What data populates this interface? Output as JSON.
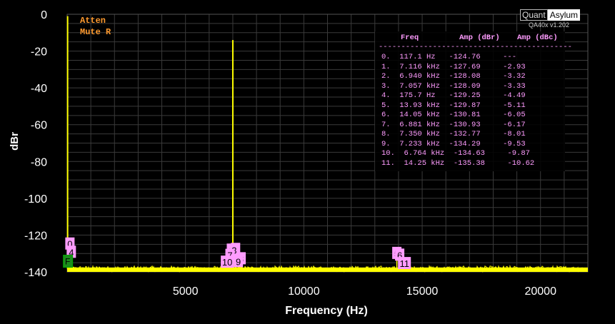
{
  "chart_data": {
    "type": "line",
    "title": "",
    "xlabel": "Frequency (Hz)",
    "ylabel": "dBr",
    "xlim": [
      0,
      22000
    ],
    "ylim": [
      -140,
      0
    ],
    "x_ticks": [
      5000,
      10000,
      15000,
      20000
    ],
    "y_ticks": [
      0,
      -20,
      -40,
      -60,
      -80,
      -100,
      -120,
      -140
    ],
    "x_tick_labels": [
      "5000",
      "10000",
      "15000",
      "20000"
    ],
    "y_tick_labels": [
      "0",
      "-20",
      "-40",
      "-60",
      "-80",
      "-100",
      "-120",
      "-140"
    ],
    "grid": true,
    "noise_floor_dbr": -138,
    "series": [
      {
        "color": "#ffff00",
        "peaks": [
          {
            "x": 20,
            "y": -1
          },
          {
            "x": 7000,
            "y": -14
          },
          {
            "x": 117.1,
            "y": -124.76
          },
          {
            "x": 175.7,
            "y": -129.25
          },
          {
            "x": 7116,
            "y": -127.69
          },
          {
            "x": 6940,
            "y": -128.08
          },
          {
            "x": 7057,
            "y": -128.09
          },
          {
            "x": 13930,
            "y": -129.87
          },
          {
            "x": 14050,
            "y": -130.81
          },
          {
            "x": 6881,
            "y": -130.93
          },
          {
            "x": 7350,
            "y": -132.77
          },
          {
            "x": 7233,
            "y": -134.29
          },
          {
            "x": 6764,
            "y": -134.63
          },
          {
            "x": 14250,
            "y": -135.38
          }
        ]
      }
    ],
    "peak_markers": [
      {
        "label": "0",
        "x": 117.1,
        "y": -124.76
      },
      {
        "label": "4",
        "x": 175.7,
        "y": -129.25
      },
      {
        "label": "1",
        "x": 7116,
        "y": -127.69
      },
      {
        "label": "2",
        "x": 6940,
        "y": -128.08
      },
      {
        "label": "3",
        "x": 7057,
        "y": -128.09
      },
      {
        "label": "5",
        "x": 13930,
        "y": -129.87
      },
      {
        "label": "6",
        "x": 14050,
        "y": -130.81
      },
      {
        "label": "7",
        "x": 6881,
        "y": -130.93
      },
      {
        "label": "8",
        "x": 7350,
        "y": -132.77
      },
      {
        "label": "9",
        "x": 7233,
        "y": -134.29
      },
      {
        "label": "10",
        "x": 6764,
        "y": -134.63
      },
      {
        "label": "11",
        "x": 14250,
        "y": -135.38
      }
    ],
    "f_marker": {
      "label": "F",
      "x": 20,
      "y": -134
    }
  },
  "status": {
    "atten": "Atten",
    "mute": "Mute R"
  },
  "brand": {
    "part1": "Quant",
    "part2": "Asylum",
    "version": "QA40x v1.202"
  },
  "peak_table": {
    "headers": [
      "Freq",
      "Amp (dBr)",
      "Amp (dBc)"
    ],
    "separator": "-------------------------------------------",
    "rows": [
      "0.  117.1 Hz   -124.76     ---",
      "1.  7.116 kHz  -127.69     -2.93",
      "2.  6.940 kHz  -128.08     -3.32",
      "3.  7.057 kHz  -128.09     -3.33",
      "4.  175.7 Hz   -129.25     -4.49",
      "5.  13.93 kHz  -129.87     -5.11",
      "6.  14.05 kHz  -130.81     -6.05",
      "7.  6.881 kHz  -130.93     -6.17",
      "8.  7.350 kHz  -132.77     -8.01",
      "9.  7.233 kHz  -134.29     -9.53",
      "10.  6.764 kHz  -134.63     -9.87",
      "11.  14.25 kHz  -135.38     -10.62"
    ]
  },
  "colors": {
    "background": "#000000",
    "trace": "#ffff00",
    "grid": "#3a3a3a",
    "marker_bg": "#ff9cff",
    "table_text": "#ff9cff",
    "status_text": "#ff9a2e"
  }
}
